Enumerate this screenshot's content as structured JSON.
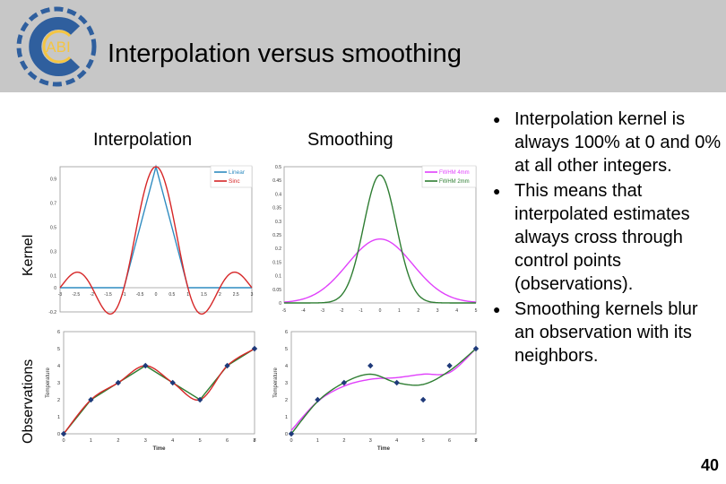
{
  "slide": {
    "title": "Interpolation versus smoothing",
    "page_number": "40"
  },
  "logo": {
    "text": "ABI",
    "colors": {
      "ring": "#2f5f9e",
      "blue": "#2f5f9e",
      "yellow": "#f4c542",
      "text": "#f4c542"
    }
  },
  "columns": {
    "interpolation": "Interpolation",
    "smoothing": "Smoothing"
  },
  "rows": {
    "kernel": "Kernel",
    "observations": "Observations"
  },
  "bullets": [
    "Interpolation kernel is always 100% at 0 and 0% at all other integers.",
    "This means that interpolated estimates always cross through control points (observations).",
    "Smoothing kernels blur an observation with its neighbors."
  ],
  "chart_data": [
    {
      "type": "line",
      "panel": "interpolation-kernel",
      "x": [
        -3,
        -2.5,
        -2,
        -1.5,
        -1,
        -0.5,
        0,
        0.5,
        1,
        1.5,
        2,
        2.5,
        3
      ],
      "xticks": [
        "-3",
        "-2.5",
        "-2",
        "-1.5",
        "-1",
        "-0.5",
        "0",
        "0.5",
        "1",
        "1.5",
        "2",
        "2.5",
        "3"
      ],
      "yticks": [
        "-0.2",
        "0",
        "0.1",
        "0.3",
        "0.5",
        "0.7",
        "0.9"
      ],
      "xlim": [
        -3,
        3
      ],
      "ylim": [
        -0.2,
        1.0
      ],
      "legend": "top-right",
      "series": [
        {
          "name": "Linear",
          "color": "#2e8bc0",
          "kind": "linear"
        },
        {
          "name": "Sinc",
          "color": "#d62728",
          "kind": "sinc"
        }
      ]
    },
    {
      "type": "line",
      "panel": "smoothing-kernel",
      "xticks": [
        "-5",
        "-4",
        "-3",
        "-2",
        "-1",
        "0",
        "1",
        "2",
        "3",
        "4",
        "5"
      ],
      "yticks": [
        "0",
        "0.05",
        "0.1",
        "0.15",
        "0.2",
        "0.25",
        "0.3",
        "0.35",
        "0.4",
        "0.45",
        "0.5"
      ],
      "xlim": [
        -5,
        5
      ],
      "ylim": [
        0,
        0.5
      ],
      "legend": "top-right",
      "series": [
        {
          "name": "FWHM 4mm",
          "color": "#e040fb",
          "sigma": 1.7
        },
        {
          "name": "FWHM 2mm",
          "color": "#2e7d32",
          "sigma": 0.85
        }
      ]
    },
    {
      "type": "line",
      "panel": "interpolation-observations",
      "xlabel": "Time",
      "ylabel": "Temperature",
      "xticks": [
        "0",
        "1",
        "2",
        "3",
        "4",
        "5",
        "6",
        "7",
        "8"
      ],
      "yticks": [
        "0",
        "1",
        "2",
        "3",
        "4",
        "5",
        "6"
      ],
      "xlim": [
        0,
        7
      ],
      "ylim": [
        0,
        6
      ],
      "points": {
        "x": [
          0,
          1,
          2,
          3,
          4,
          5,
          6,
          7
        ],
        "y": [
          0,
          2,
          3,
          4,
          3,
          2,
          4,
          5
        ],
        "color": "#1f3a7a"
      },
      "series": [
        {
          "name": "",
          "color": "#2e7d32",
          "kind": "linear"
        },
        {
          "name": "",
          "color": "#d62728",
          "kind": "smooth"
        }
      ]
    },
    {
      "type": "line",
      "panel": "smoothing-observations",
      "xlabel": "Time",
      "ylabel": "Temperature",
      "xticks": [
        "0",
        "1",
        "2",
        "3",
        "4",
        "5",
        "6",
        "7",
        "8"
      ],
      "yticks": [
        "0",
        "1",
        "2",
        "3",
        "4",
        "5",
        "6"
      ],
      "xlim": [
        0,
        7
      ],
      "ylim": [
        0,
        6
      ],
      "points": {
        "x": [
          0,
          1,
          2,
          3,
          4,
          5,
          6,
          7
        ],
        "y": [
          0,
          2,
          3,
          4,
          3,
          2,
          4,
          5
        ],
        "color": "#1f3a7a"
      },
      "series": [
        {
          "name": "",
          "color": "#e040fb",
          "y": [
            0.2,
            1.9,
            2.8,
            3.2,
            3.3,
            3.5,
            3.6,
            5.0
          ]
        },
        {
          "name": "",
          "color": "#2e7d32",
          "y": [
            0,
            1.9,
            3.0,
            3.5,
            3.0,
            2.9,
            3.7,
            5.0
          ]
        }
      ]
    }
  ]
}
